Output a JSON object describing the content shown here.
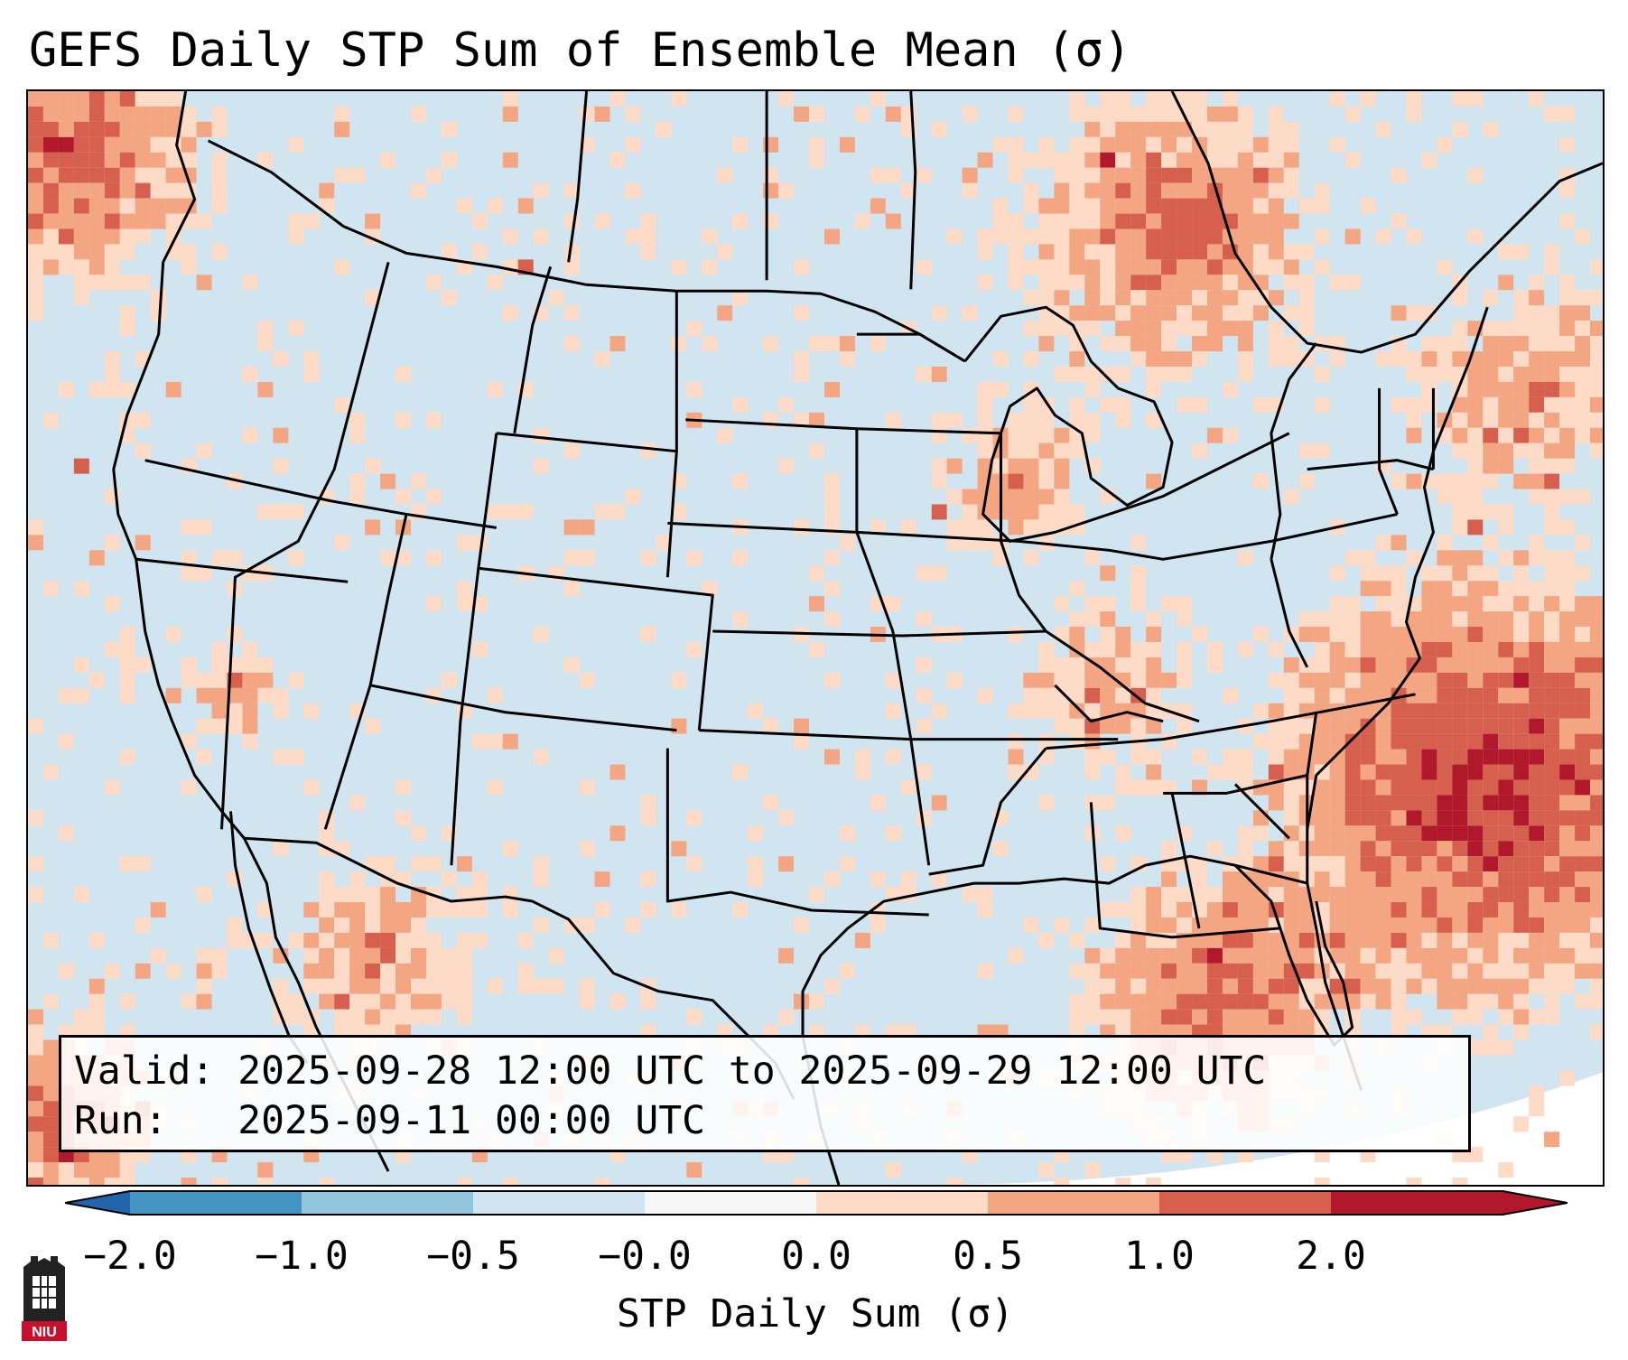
{
  "title": "GEFS Daily STP Sum of Ensemble Mean (σ)",
  "info": {
    "valid_label": "Valid:",
    "valid_value": "2025-09-28 12:00 UTC to 2025-09-29 12:00 UTC",
    "run_label": "Run:",
    "run_value": "2025-09-11 00:00 UTC"
  },
  "colorbar": {
    "label": "STP Daily Sum (σ)",
    "ticks": [
      "−2.0",
      "−1.0",
      "−0.5",
      "−0.0",
      "0.0",
      "0.5",
      "1.0",
      "2.0"
    ],
    "colors": [
      "#4393c3",
      "#92c5de",
      "#d1e5f0",
      "#f7f7f7",
      "#fddbc7",
      "#f4a582",
      "#d6604d",
      "#b2182b"
    ],
    "under_color": "#2166ac",
    "over_color": "#b2182b"
  },
  "map": {
    "background_color": "#d1e5f0",
    "border_color": "#000000"
  },
  "logo": {
    "text": "NIU",
    "color": "#c8102e"
  }
}
